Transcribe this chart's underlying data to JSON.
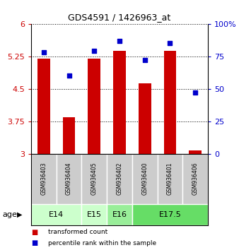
{
  "title": "GDS4591 / 1426963_at",
  "samples": [
    "GSM936403",
    "GSM936404",
    "GSM936405",
    "GSM936402",
    "GSM936400",
    "GSM936401",
    "GSM936406"
  ],
  "transformed_count": [
    5.19,
    3.85,
    5.19,
    5.38,
    4.62,
    5.37,
    3.07
  ],
  "percentile_rank": [
    78,
    60,
    79,
    87,
    72,
    85,
    47
  ],
  "age_groups": [
    {
      "label": "E14",
      "span": [
        0,
        2
      ],
      "color": "#ccffcc"
    },
    {
      "label": "E15",
      "span": [
        2,
        3
      ],
      "color": "#ccffcc"
    },
    {
      "label": "E16",
      "span": [
        3,
        4
      ],
      "color": "#99ee99"
    },
    {
      "label": "E17.5",
      "span": [
        4,
        7
      ],
      "color": "#66dd66"
    }
  ],
  "ylim_left": [
    3,
    6
  ],
  "ylim_right": [
    0,
    100
  ],
  "yticks_left": [
    3,
    3.75,
    4.5,
    5.25,
    6
  ],
  "yticks_right": [
    0,
    25,
    50,
    75,
    100
  ],
  "bar_color": "#cc0000",
  "dot_color": "#0000cc",
  "bar_width": 0.5,
  "background_color": "#ffffff",
  "ylabel_left_color": "#cc0000",
  "ylabel_right_color": "#0000cc",
  "title_fontsize": 9,
  "tick_fontsize": 8,
  "sample_fontsize": 5.5,
  "age_fontsize": 8
}
